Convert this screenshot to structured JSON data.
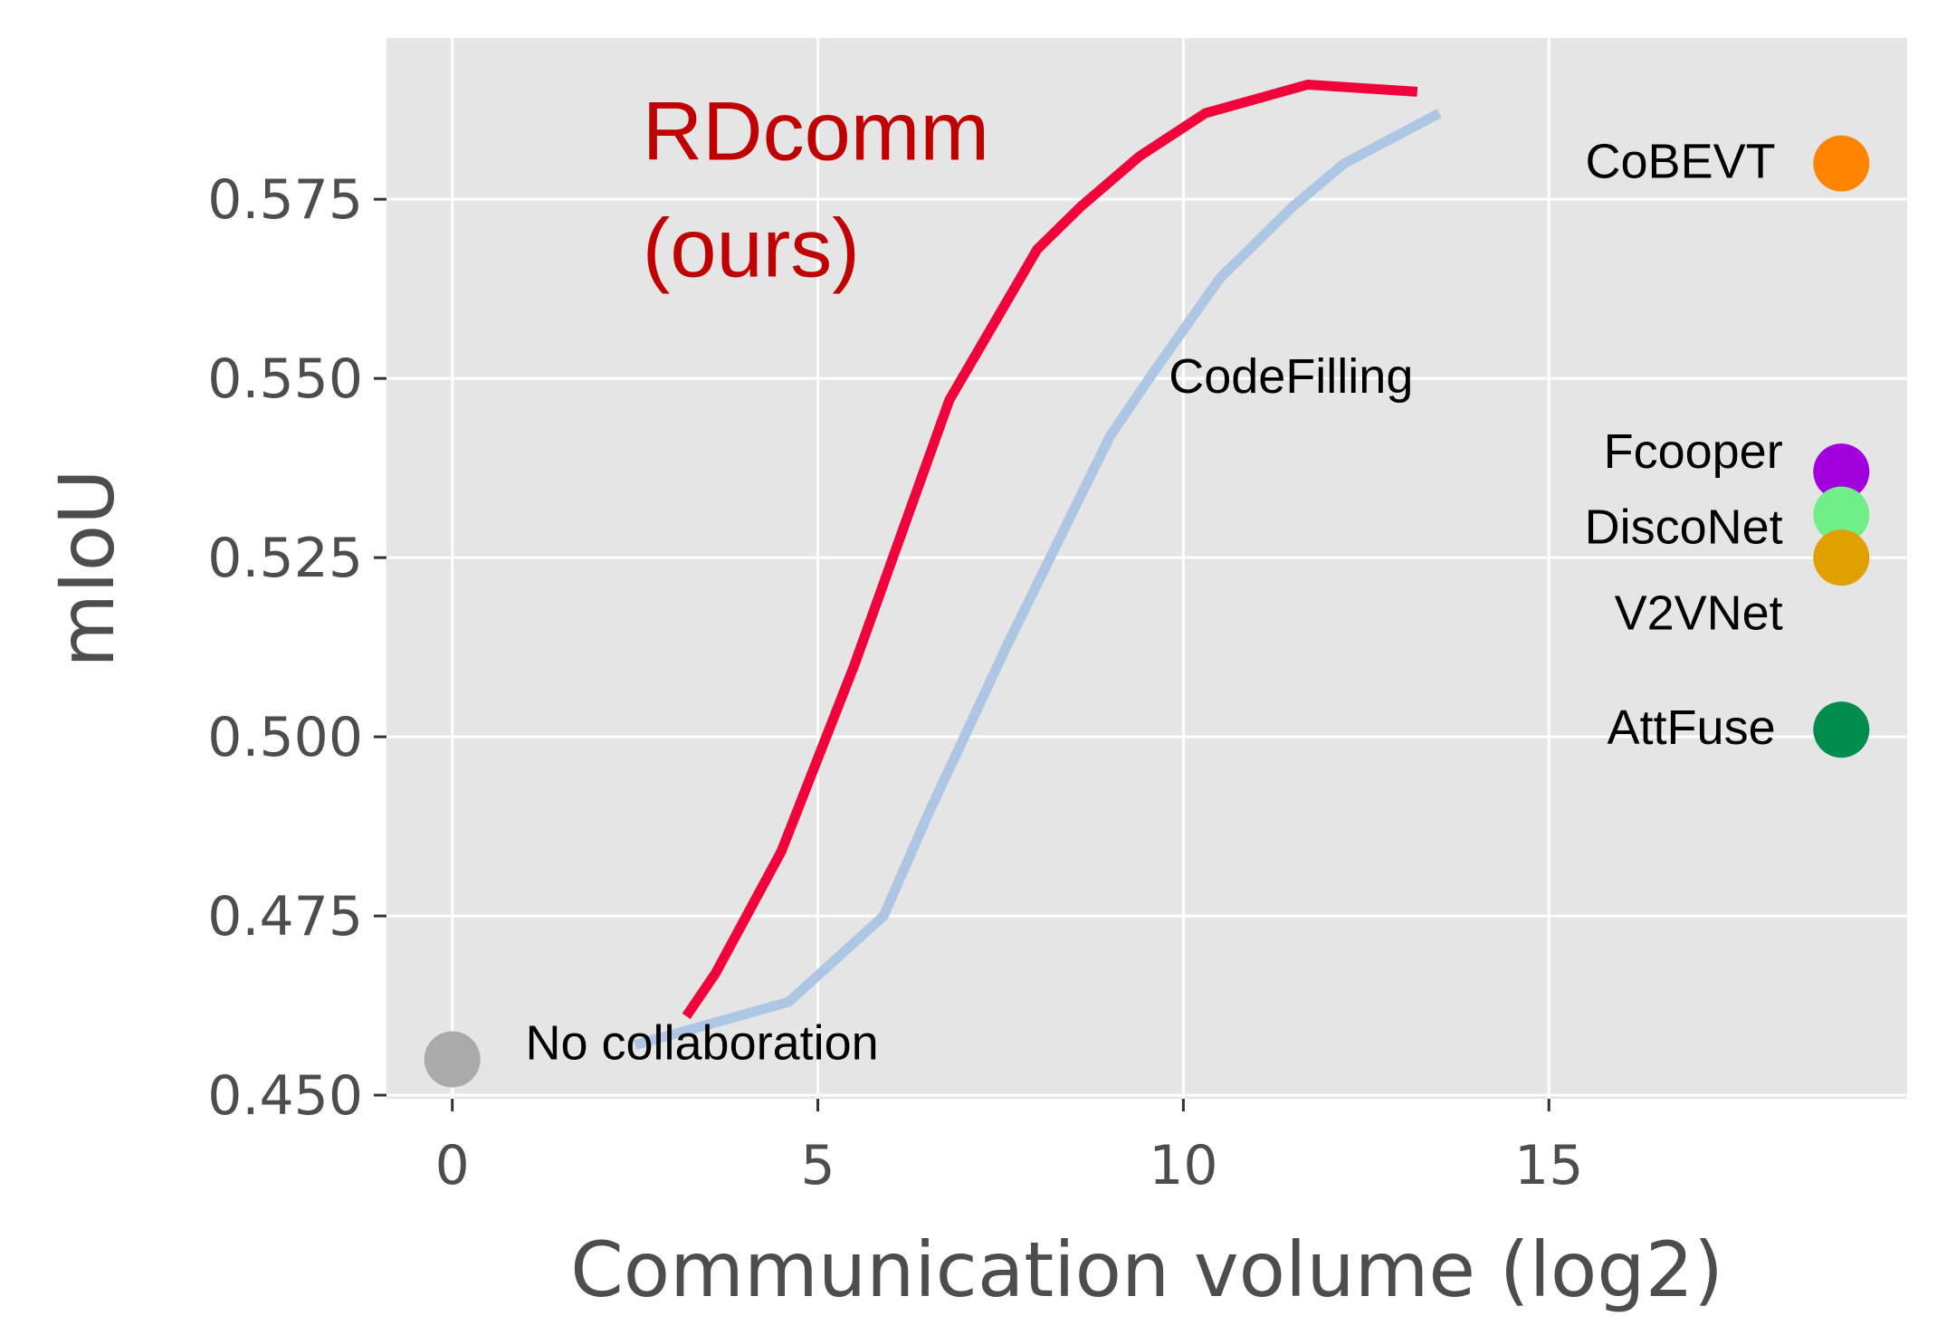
{
  "chart_data": {
    "type": "line",
    "title": "",
    "xlabel": "Communication volume (log2)",
    "ylabel": "mIoU",
    "xlim": [
      -0.9,
      19.9
    ],
    "ylim": [
      0.4495,
      0.5975
    ],
    "xticks": [
      0,
      5,
      10,
      15
    ],
    "xtick_labels": [
      "0",
      "5",
      "10",
      "15"
    ],
    "yticks": [
      0.45,
      0.475,
      0.5,
      0.525,
      0.55,
      0.575
    ],
    "ytick_labels": [
      "0.450",
      "0.475",
      "0.500",
      "0.525",
      "0.550",
      "0.575"
    ],
    "grid": true,
    "legend": "none",
    "background": "#e5e5e5",
    "series": [
      {
        "name": "RDcomm",
        "color": "#f0033a",
        "x": [
          3.2,
          3.6,
          4.5,
          5.5,
          6.8,
          8.0,
          8.6,
          9.4,
          10.3,
          11.7,
          13.2
        ],
        "y": [
          0.461,
          0.467,
          0.484,
          0.51,
          0.547,
          0.568,
          0.574,
          0.581,
          0.587,
          0.591,
          0.59
        ]
      },
      {
        "name": "CodeFilling",
        "color": "#adc6e4",
        "x": [
          2.5,
          3.2,
          4.6,
          5.9,
          6.5,
          7.6,
          9.0,
          9.6,
          10.5,
          11.5,
          12.2,
          13.5
        ],
        "y": [
          0.457,
          0.459,
          0.463,
          0.475,
          0.489,
          0.513,
          0.542,
          0.551,
          0.564,
          0.574,
          0.58,
          0.587
        ]
      }
    ],
    "points": [
      {
        "name": "No collaboration",
        "x": 0.0,
        "y": 0.455,
        "color": "#aaaaaa"
      },
      {
        "name": "CoBEVT",
        "x": 19.0,
        "y": 0.58,
        "color": "#ff8400"
      },
      {
        "name": "Fcooper",
        "x": 19.0,
        "y": 0.537,
        "color": "#a100dc"
      },
      {
        "name": "DiscoNet",
        "x": 19.0,
        "y": 0.531,
        "color": "#70ef88"
      },
      {
        "name": "V2VNet",
        "x": 19.0,
        "y": 0.525,
        "color": "#e0a000"
      },
      {
        "name": "AttFuse",
        "x": 19.0,
        "y": 0.501,
        "color": "#008c4c"
      }
    ],
    "annotations": [
      {
        "text": "RDcomm",
        "x": 2.6,
        "y": 0.5805,
        "anchor": "start",
        "style": "hero"
      },
      {
        "text": "(ours)",
        "x": 2.6,
        "y": 0.5642,
        "anchor": "start",
        "style": "hero"
      },
      {
        "text": "CodeFilling",
        "x": 9.8,
        "y": 0.548,
        "anchor": "start",
        "style": "annot"
      },
      {
        "text": "No collaboration",
        "x": 1.0,
        "y": 0.455,
        "anchor": "start",
        "style": "annot"
      },
      {
        "text": "CoBEVT",
        "x": 18.1,
        "y": 0.578,
        "anchor": "end",
        "style": "annot"
      },
      {
        "text": "Fcooper",
        "x": 18.2,
        "y": 0.5375,
        "anchor": "end",
        "style": "annot"
      },
      {
        "text": "DiscoNet",
        "x": 18.2,
        "y": 0.527,
        "anchor": "end",
        "style": "annot"
      },
      {
        "text": "V2VNet",
        "x": 18.2,
        "y": 0.515,
        "anchor": "end",
        "style": "annot"
      },
      {
        "text": "AttFuse",
        "x": 18.1,
        "y": 0.499,
        "anchor": "end",
        "style": "annot"
      }
    ]
  }
}
